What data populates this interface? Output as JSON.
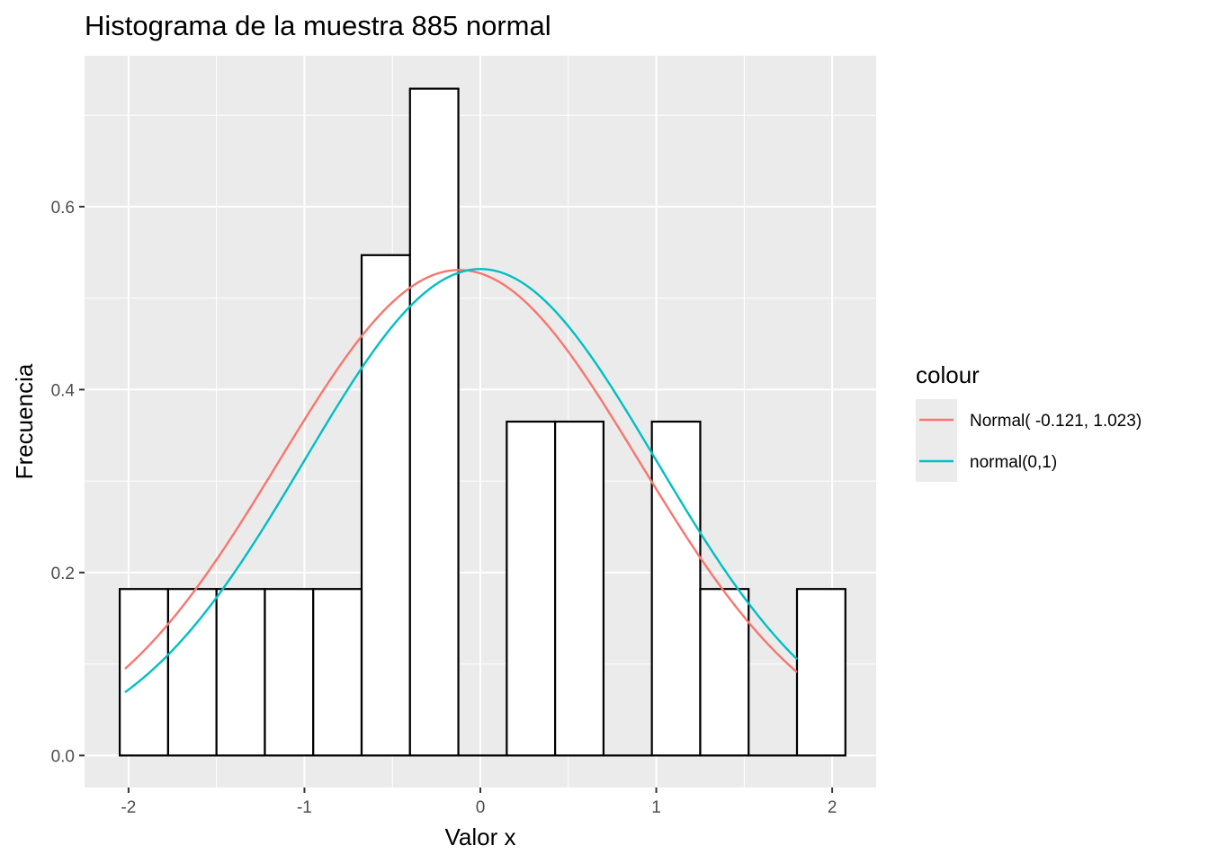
{
  "chart_data": {
    "type": "bar",
    "title": "Histograma de la  muestra 885 normal",
    "xlabel": "Valor x",
    "ylabel": "Frecuencia",
    "xlim": [
      -2.25,
      2.25
    ],
    "ylim": [
      -0.035,
      0.765
    ],
    "x_ticks": [
      -2,
      -1,
      0,
      1,
      2
    ],
    "x_tick_labels": [
      "-2",
      "-1",
      "0",
      "1",
      "2"
    ],
    "y_ticks": [
      0.0,
      0.2,
      0.4,
      0.6
    ],
    "y_tick_labels": [
      "0.0",
      "0.2",
      "0.4",
      "0.6"
    ],
    "grid": true,
    "legend_position": "right",
    "histogram": {
      "bins": [
        {
          "x0": -2.05,
          "x1": -1.775,
          "density": 0.182
        },
        {
          "x0": -1.775,
          "x1": -1.5,
          "density": 0.182
        },
        {
          "x0": -1.5,
          "x1": -1.225,
          "density": 0.182
        },
        {
          "x0": -1.225,
          "x1": -0.95,
          "density": 0.182
        },
        {
          "x0": -0.95,
          "x1": -0.675,
          "density": 0.182
        },
        {
          "x0": -0.675,
          "x1": -0.4,
          "density": 0.547
        },
        {
          "x0": -0.4,
          "x1": -0.125,
          "density": 0.729
        },
        {
          "x0": -0.125,
          "x1": 0.15,
          "density": 0.0
        },
        {
          "x0": 0.15,
          "x1": 0.425,
          "density": 0.365
        },
        {
          "x0": 0.425,
          "x1": 0.7,
          "density": 0.365
        },
        {
          "x0": 0.7,
          "x1": 0.975,
          "density": 0.0
        },
        {
          "x0": 0.975,
          "x1": 1.25,
          "density": 0.365
        },
        {
          "x0": 1.25,
          "x1": 1.525,
          "density": 0.182
        },
        {
          "x0": 1.525,
          "x1": 1.8,
          "density": 0.0
        },
        {
          "x0": 1.8,
          "x1": 2.075,
          "density": 0.182
        }
      ],
      "fill": "#ffffff",
      "stroke": "#000000"
    },
    "legend_title": "colour",
    "series": [
      {
        "name": "Normal( -0.121, 1.023)",
        "color": "#F8766D",
        "mean": -0.121,
        "sd": 1.023,
        "scale": 1.361,
        "x_range": [
          -2.02,
          1.8
        ]
      },
      {
        "name": "normal(0,1)",
        "color": "#00BFC4",
        "mean": 0,
        "sd": 1,
        "scale": 1.333,
        "x_range": [
          -2.02,
          1.8
        ]
      }
    ]
  },
  "colors": {
    "panel_background": "#EBEBEB",
    "grid": "#FFFFFF",
    "tick_text": "#4D4D4D"
  }
}
